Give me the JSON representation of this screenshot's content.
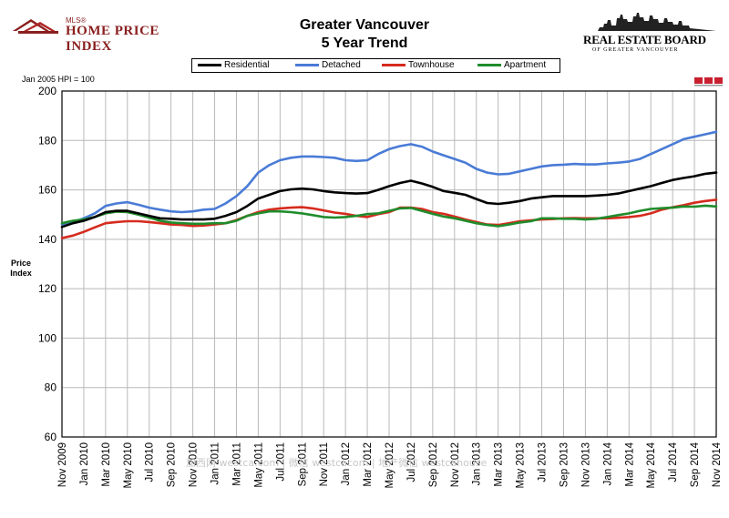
{
  "header": {
    "title_line1": "Greater Vancouver",
    "title_line2": "5 Year Trend",
    "left_logo_small": "MLS®",
    "left_logo_text": "HOME PRICE INDEX",
    "right_logo_text": "REAL ESTATE BOARD",
    "right_logo_sub": "OF GREATER VANCOUVER"
  },
  "note": "Jan 2005 HPI = 100",
  "watermark": "加西网 westca.com | 微信 westcacom | 地产微信 westcahouse",
  "colors": {
    "Residential": "#000000",
    "Detached": "#4a7bd6",
    "Townhouse": "#d62b1e",
    "Apartment": "#1f8c2b",
    "grid": "#b9b9b9",
    "mls_badge": "#c8202f"
  },
  "chart_data": {
    "type": "line",
    "ylabel": "Price Index",
    "ylim": [
      60,
      200
    ],
    "yticks": [
      60,
      80,
      100,
      120,
      140,
      160,
      180,
      200
    ],
    "grid": true,
    "legend_placement": "top-center",
    "x_tick_labels": [
      "Nov 2009",
      "Jan 2010",
      "Mar 2010",
      "May 2010",
      "Jul 2010",
      "Sep 2010",
      "Nov 2010",
      "Jan 2011",
      "Mar 2011",
      "May 2011",
      "Jul 2011",
      "Sep 2011",
      "Nov 2011",
      "Jan 2012",
      "Mar 2012",
      "May 2012",
      "Jul 2012",
      "Sep 2012",
      "Nov 2012",
      "Jan 2013",
      "Mar 2013",
      "May 2013",
      "Jul 2013",
      "Sep 2013",
      "Nov 2013",
      "Jan 2014",
      "Mar 2014",
      "May 2014",
      "Jul 2014",
      "Sep 2014",
      "Nov 2014"
    ],
    "x": [
      "Nov 2009",
      "Dec 2009",
      "Jan 2010",
      "Feb 2010",
      "Mar 2010",
      "Apr 2010",
      "May 2010",
      "Jun 2010",
      "Jul 2010",
      "Aug 2010",
      "Sep 2010",
      "Oct 2010",
      "Nov 2010",
      "Dec 2010",
      "Jan 2011",
      "Feb 2011",
      "Mar 2011",
      "Apr 2011",
      "May 2011",
      "Jun 2011",
      "Jul 2011",
      "Aug 2011",
      "Sep 2011",
      "Oct 2011",
      "Nov 2011",
      "Dec 2011",
      "Jan 2012",
      "Feb 2012",
      "Mar 2012",
      "Apr 2012",
      "May 2012",
      "Jun 2012",
      "Jul 2012",
      "Aug 2012",
      "Sep 2012",
      "Oct 2012",
      "Nov 2012",
      "Dec 2012",
      "Jan 2013",
      "Feb 2013",
      "Mar 2013",
      "Apr 2013",
      "May 2013",
      "Jun 2013",
      "Jul 2013",
      "Aug 2013",
      "Sep 2013",
      "Oct 2013",
      "Nov 2013",
      "Dec 2013",
      "Jan 2014",
      "Feb 2014",
      "Mar 2014",
      "Apr 2014",
      "May 2014",
      "Jun 2014",
      "Jul 2014",
      "Aug 2014",
      "Sep 2014",
      "Oct 2014",
      "Nov 2014"
    ],
    "series": [
      {
        "name": "Residential",
        "values": [
          145,
          146.5,
          147.5,
          149,
          151,
          151.5,
          151.5,
          150.5,
          149.5,
          148.5,
          148.3,
          148,
          148,
          148,
          148.3,
          149.5,
          151,
          153.5,
          156.5,
          158,
          159.5,
          160.2,
          160.5,
          160.2,
          159.5,
          159,
          158.7,
          158.5,
          158.7,
          160,
          161.5,
          162.8,
          163.7,
          162.6,
          161.2,
          159.5,
          158.8,
          158,
          156.3,
          154.7,
          154.3,
          154.8,
          155.5,
          156.5,
          157,
          157.5,
          157.5,
          157.5,
          157.5,
          157.7,
          158,
          158.5,
          159.5,
          160.5,
          161.5,
          162.8,
          164,
          164.8,
          165.5,
          166.5,
          167
        ]
      },
      {
        "name": "Detached",
        "values": [
          146,
          146.8,
          148.5,
          150.5,
          153.5,
          154.5,
          155,
          154,
          152.8,
          152,
          151.3,
          151,
          151.3,
          152,
          152.3,
          154.5,
          157.5,
          161.5,
          167,
          170,
          172,
          173,
          173.5,
          173.5,
          173.3,
          173,
          172,
          171.7,
          172,
          174.5,
          176.5,
          177.7,
          178.5,
          177.5,
          175.5,
          174,
          172.5,
          171,
          168.5,
          167,
          166.3,
          166.5,
          167.5,
          168.5,
          169.5,
          170,
          170.2,
          170.5,
          170.3,
          170.3,
          170.7,
          171,
          171.5,
          172.5,
          174.5,
          176.5,
          178.5,
          180.5,
          181.5,
          182.5,
          183.5
        ]
      },
      {
        "name": "Townhouse",
        "values": [
          140.5,
          141.5,
          143,
          144.8,
          146.5,
          147,
          147.3,
          147.3,
          147,
          146.5,
          146,
          145.8,
          145.4,
          145.6,
          146,
          146.5,
          147.8,
          149.5,
          151,
          152,
          152.5,
          152.8,
          153,
          152.5,
          151.7,
          150.8,
          150.3,
          149.5,
          149,
          150.2,
          151,
          152.8,
          152.8,
          152.3,
          151,
          150.3,
          149.2,
          148,
          147,
          146,
          145.8,
          146.5,
          147.3,
          147.7,
          148,
          148.2,
          148.5,
          148.6,
          148.5,
          148.5,
          148.5,
          148.7,
          149,
          149.5,
          150.5,
          152,
          153,
          153.8,
          154.8,
          155.5,
          156
        ]
      },
      {
        "name": "Apartment",
        "values": [
          146.5,
          147.5,
          148,
          149,
          150.5,
          151.2,
          151,
          150,
          148.8,
          147.5,
          146.8,
          146.5,
          146.3,
          146.3,
          146.5,
          146.5,
          147.5,
          149.5,
          150.5,
          151.3,
          151.3,
          151,
          150.5,
          149.8,
          149,
          148.8,
          149,
          149.5,
          150.2,
          150.5,
          151.5,
          152.5,
          152.7,
          151.5,
          150.3,
          149.2,
          148.5,
          147.5,
          146.5,
          145.8,
          145.3,
          146,
          146.8,
          147.3,
          148.5,
          148.5,
          148.3,
          148.3,
          148,
          148.3,
          149,
          149.8,
          150.5,
          151.5,
          152.3,
          152.6,
          152.8,
          153.3,
          153.2,
          153.6,
          153.3
        ]
      }
    ]
  }
}
